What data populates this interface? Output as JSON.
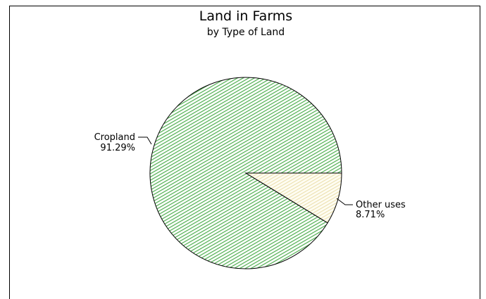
{
  "chart_data": {
    "type": "pie",
    "title": "Land in Farms",
    "subtitle": "by Type of Land",
    "slices": [
      {
        "label": "Cropland",
        "value": 91.29,
        "value_label": "91.29%",
        "color": "#5cbf5c"
      },
      {
        "label": "Other uses",
        "value": 8.71,
        "value_label": "8.71%",
        "color": "#f5ecc8"
      }
    ]
  }
}
